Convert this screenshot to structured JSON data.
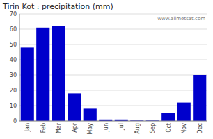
{
  "chart_data": {
    "type": "bar",
    "title": "Tirin Kot : precipitation (mm)",
    "categories": [
      "Jan",
      "Feb",
      "Mar",
      "Apr",
      "May",
      "Jun",
      "Jul",
      "Aug",
      "Sep",
      "Oct",
      "Nov",
      "Dec"
    ],
    "values": [
      48,
      61,
      62,
      18,
      8,
      1,
      1,
      0.3,
      0.3,
      5,
      12,
      30
    ],
    "color": "#0000cc",
    "ylim": [
      0,
      70
    ],
    "yticks": [
      0,
      10,
      20,
      30,
      40,
      50,
      60,
      70
    ],
    "grid": true,
    "annotations": [
      "www.allmetsat.com"
    ]
  }
}
